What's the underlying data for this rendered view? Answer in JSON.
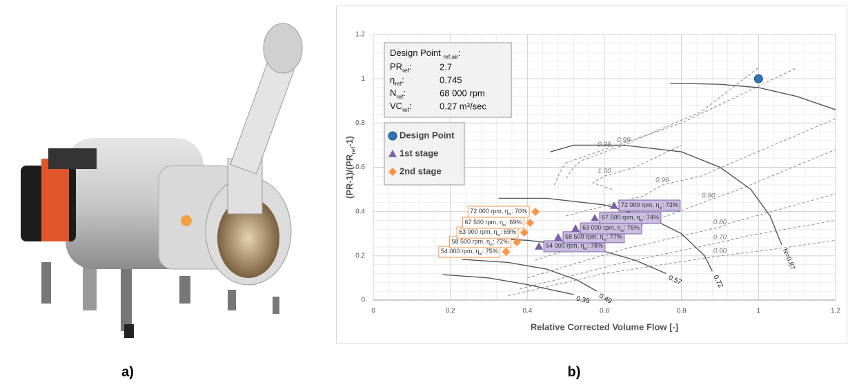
{
  "panel_labels": [
    "a)",
    "b)"
  ],
  "chart_data": {
    "type": "scatter",
    "xlabel": "Relative Corrected Volume Flow [-]",
    "ylabel": [
      "(PR-1)/(PR",
      "ref",
      "-1)"
    ],
    "xlim": [
      0,
      1.2
    ],
    "ylim": [
      0,
      1.2
    ],
    "xticks": [
      0,
      0.2,
      0.4,
      0.6,
      0.8,
      {
        "value": 1,
        "label": "1"
      },
      1.2
    ],
    "yticks": [
      0,
      0.2,
      0.4,
      0.6,
      0.8,
      {
        "value": 1,
        "label": "1"
      },
      1.2
    ],
    "grid": true,
    "info_box": {
      "title": [
        "Design Point ",
        "ref,air",
        ":"
      ],
      "rows": [
        {
          "label": [
            "PR",
            "ref",
            ":"
          ],
          "value": "2.7"
        },
        {
          "label": [
            "η",
            "ref",
            ":"
          ],
          "value": "0.745"
        },
        {
          "label": [
            "N",
            "ref",
            ":"
          ],
          "value": "68 000 rpm"
        },
        {
          "label": [
            "VC",
            "ref",
            ":"
          ],
          "value": "0.27 m³/sec"
        }
      ]
    },
    "series": [
      {
        "name": "Design Point",
        "color": "#2e75b6",
        "marker": "circle",
        "x": [
          1
        ],
        "values": [
          1
        ]
      },
      {
        "name": "1st stage",
        "color": "#7a62a8",
        "marker": "triangle",
        "label_side": "right",
        "label_fill": "#c9bde0",
        "x": [
          0.43,
          0.48,
          0.525,
          0.575,
          0.625
        ],
        "values": [
          0.243,
          0.284,
          0.324,
          0.371,
          0.427
        ],
        "labels": [
          [
            "54 000 rpm, η",
            "is",
            ": 78%"
          ],
          [
            "58 500 rpm, η",
            "is",
            ": 77%"
          ],
          [
            "63 000 rpm, η",
            "is",
            ": 76%"
          ],
          [
            "67 500 rpm, η",
            "is",
            ": 74%"
          ],
          [
            "72 000 rpm, η",
            "is",
            ": 73%"
          ]
        ]
      },
      {
        "name": "2nd stage",
        "color": "#f79646",
        "marker": "diamond",
        "label_side": "left",
        "label_fill": "#ffffff",
        "x": [
          0.345,
          0.373,
          0.392,
          0.407,
          0.421
        ],
        "values": [
          0.218,
          0.262,
          0.305,
          0.349,
          0.399
        ],
        "labels": [
          [
            "54 000 rpm, η",
            "is",
            ": 75%"
          ],
          [
            "58 500 rpm, η",
            "is",
            ": 72%"
          ],
          [
            "63 000 rpm, η",
            "is",
            ": 69%"
          ],
          [
            "67 500 rpm, η",
            "is",
            ": 69%"
          ],
          [
            "72 000 rpm, η",
            "is",
            ": 70%"
          ]
        ]
      }
    ],
    "speed_lines": [
      {
        "label": "0.39",
        "x": [
          0.18,
          0.3,
          0.4,
          0.48,
          0.52
        ],
        "values": [
          0.115,
          0.1,
          0.07,
          0.04,
          0.025
        ]
      },
      {
        "label": "0.49",
        "x": [
          0.23,
          0.35,
          0.45,
          0.53,
          0.58
        ],
        "values": [
          0.184,
          0.17,
          0.14,
          0.09,
          0.04
        ]
      },
      {
        "label": "0.57",
        "x": [
          0.285,
          0.4,
          0.5,
          0.6,
          0.68,
          0.76
        ],
        "values": [
          0.28,
          0.27,
          0.25,
          0.22,
          0.18,
          0.12
        ]
      },
      {
        "label": "0.72",
        "x": [
          0.325,
          0.45,
          0.6,
          0.72,
          0.8,
          0.86,
          0.88
        ],
        "values": [
          0.46,
          0.46,
          0.43,
          0.37,
          0.3,
          0.2,
          0.13
        ]
      },
      {
        "label": "N=0.87",
        "x": [
          0.46,
          0.52,
          0.65,
          0.8,
          0.9,
          0.98,
          1.03,
          1.06
        ],
        "values": [
          0.67,
          0.7,
          0.7,
          0.67,
          0.6,
          0.5,
          0.38,
          0.25
        ]
      },
      {
        "x": [
          0.77,
          0.9,
          1.0,
          1.1,
          1.2
        ],
        "values": [
          0.98,
          0.975,
          0.96,
          0.92,
          0.86
        ]
      }
    ],
    "efficiency_lines": [
      {
        "label": "0.60",
        "x": [
          0.35,
          0.6,
          0.9,
          1.04,
          1.2
        ],
        "values": [
          0.02,
          0.12,
          0.2,
          0.23,
          0.27
        ]
      },
      {
        "label": "0.70",
        "x": [
          0.38,
          0.65,
          0.9,
          0.97,
          1.2
        ],
        "values": [
          0.05,
          0.17,
          0.26,
          0.29,
          0.36
        ]
      },
      {
        "label": "0.80",
        "x": [
          0.4,
          0.65,
          0.9,
          0.93,
          1.2
        ],
        "values": [
          0.1,
          0.23,
          0.33,
          0.35,
          0.48
        ]
      },
      {
        "label": "0.90",
        "x": [
          0.42,
          0.7,
          0.87,
          0.95,
          1.2
        ],
        "values": [
          0.18,
          0.34,
          0.45,
          0.5,
          0.68
        ]
      },
      {
        "label": "0.96",
        "x": [
          0.5,
          0.7,
          0.75,
          0.85,
          1.2
        ],
        "values": [
          0.38,
          0.47,
          0.52,
          0.56,
          0.82
        ]
      },
      {
        "label": "0.98",
        "x": [
          0.47,
          0.485,
          0.5,
          0.6,
          0.8,
          1.1
        ],
        "values": [
          0.52,
          0.58,
          0.62,
          0.68,
          0.8,
          1.05
        ]
      },
      {
        "label": "0.99",
        "x": [
          0.5,
          0.52,
          0.54,
          0.65,
          0.85,
          1.0
        ],
        "values": [
          0.55,
          0.6,
          0.63,
          0.7,
          0.85,
          1.05
        ]
      },
      {
        "label": "1.00",
        "x": [
          0.62,
          0.57,
          0.6,
          0.68,
          0.8
        ],
        "values": [
          0.5,
          0.53,
          0.56,
          0.6,
          0.7
        ]
      }
    ]
  }
}
